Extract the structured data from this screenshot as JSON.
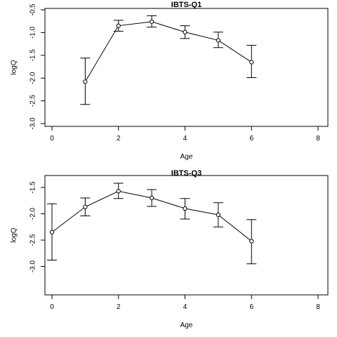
{
  "chart_data": [
    {
      "type": "scatter",
      "title": "IBTS-Q1",
      "xlabel": "Age",
      "ylabel": "logQ",
      "xlim": [
        0,
        8
      ],
      "ylim": [
        -3.0,
        -0.5
      ],
      "x_ticks": [
        0,
        2,
        4,
        6,
        8
      ],
      "y_ticks": [
        -3.0,
        -2.5,
        -2.0,
        -1.5,
        -1.0,
        -0.5
      ],
      "y_tick_labels": [
        "-3.0",
        "-2.5",
        "-2.0",
        "-1.5",
        "-1.0",
        "-0.5"
      ],
      "grid": false,
      "series": [
        {
          "x": [
            1,
            2,
            3,
            4,
            5,
            6
          ],
          "y": [
            -2.08,
            -0.85,
            -0.76,
            -0.99,
            -1.17,
            -1.65
          ],
          "lower": [
            -2.58,
            -0.97,
            -0.88,
            -1.13,
            -1.33,
            -1.99
          ],
          "upper": [
            -1.56,
            -0.73,
            -0.63,
            -0.85,
            -0.99,
            -1.28
          ]
        }
      ]
    },
    {
      "type": "scatter",
      "title": "IBTS-Q3",
      "xlabel": "Age",
      "ylabel": "logQ",
      "xlim": [
        0,
        8
      ],
      "ylim": [
        -3.5,
        -1.3
      ],
      "x_ticks": [
        0,
        2,
        4,
        6,
        8
      ],
      "y_ticks": [
        -3.0,
        -2.5,
        -2.0,
        -1.5
      ],
      "y_tick_labels": [
        "-3.0",
        "-2.5",
        "-2.0",
        "-1.5"
      ],
      "grid": false,
      "series": [
        {
          "x": [
            0,
            1,
            2,
            3,
            4,
            5,
            6
          ],
          "y": [
            -2.35,
            -1.87,
            -1.57,
            -1.7,
            -1.9,
            -2.02,
            -2.52
          ],
          "lower": [
            -2.88,
            -2.04,
            -1.71,
            -1.86,
            -2.1,
            -2.25,
            -2.95
          ],
          "upper": [
            -1.81,
            -1.7,
            -1.42,
            -1.54,
            -1.71,
            -1.79,
            -2.11
          ]
        }
      ]
    }
  ]
}
